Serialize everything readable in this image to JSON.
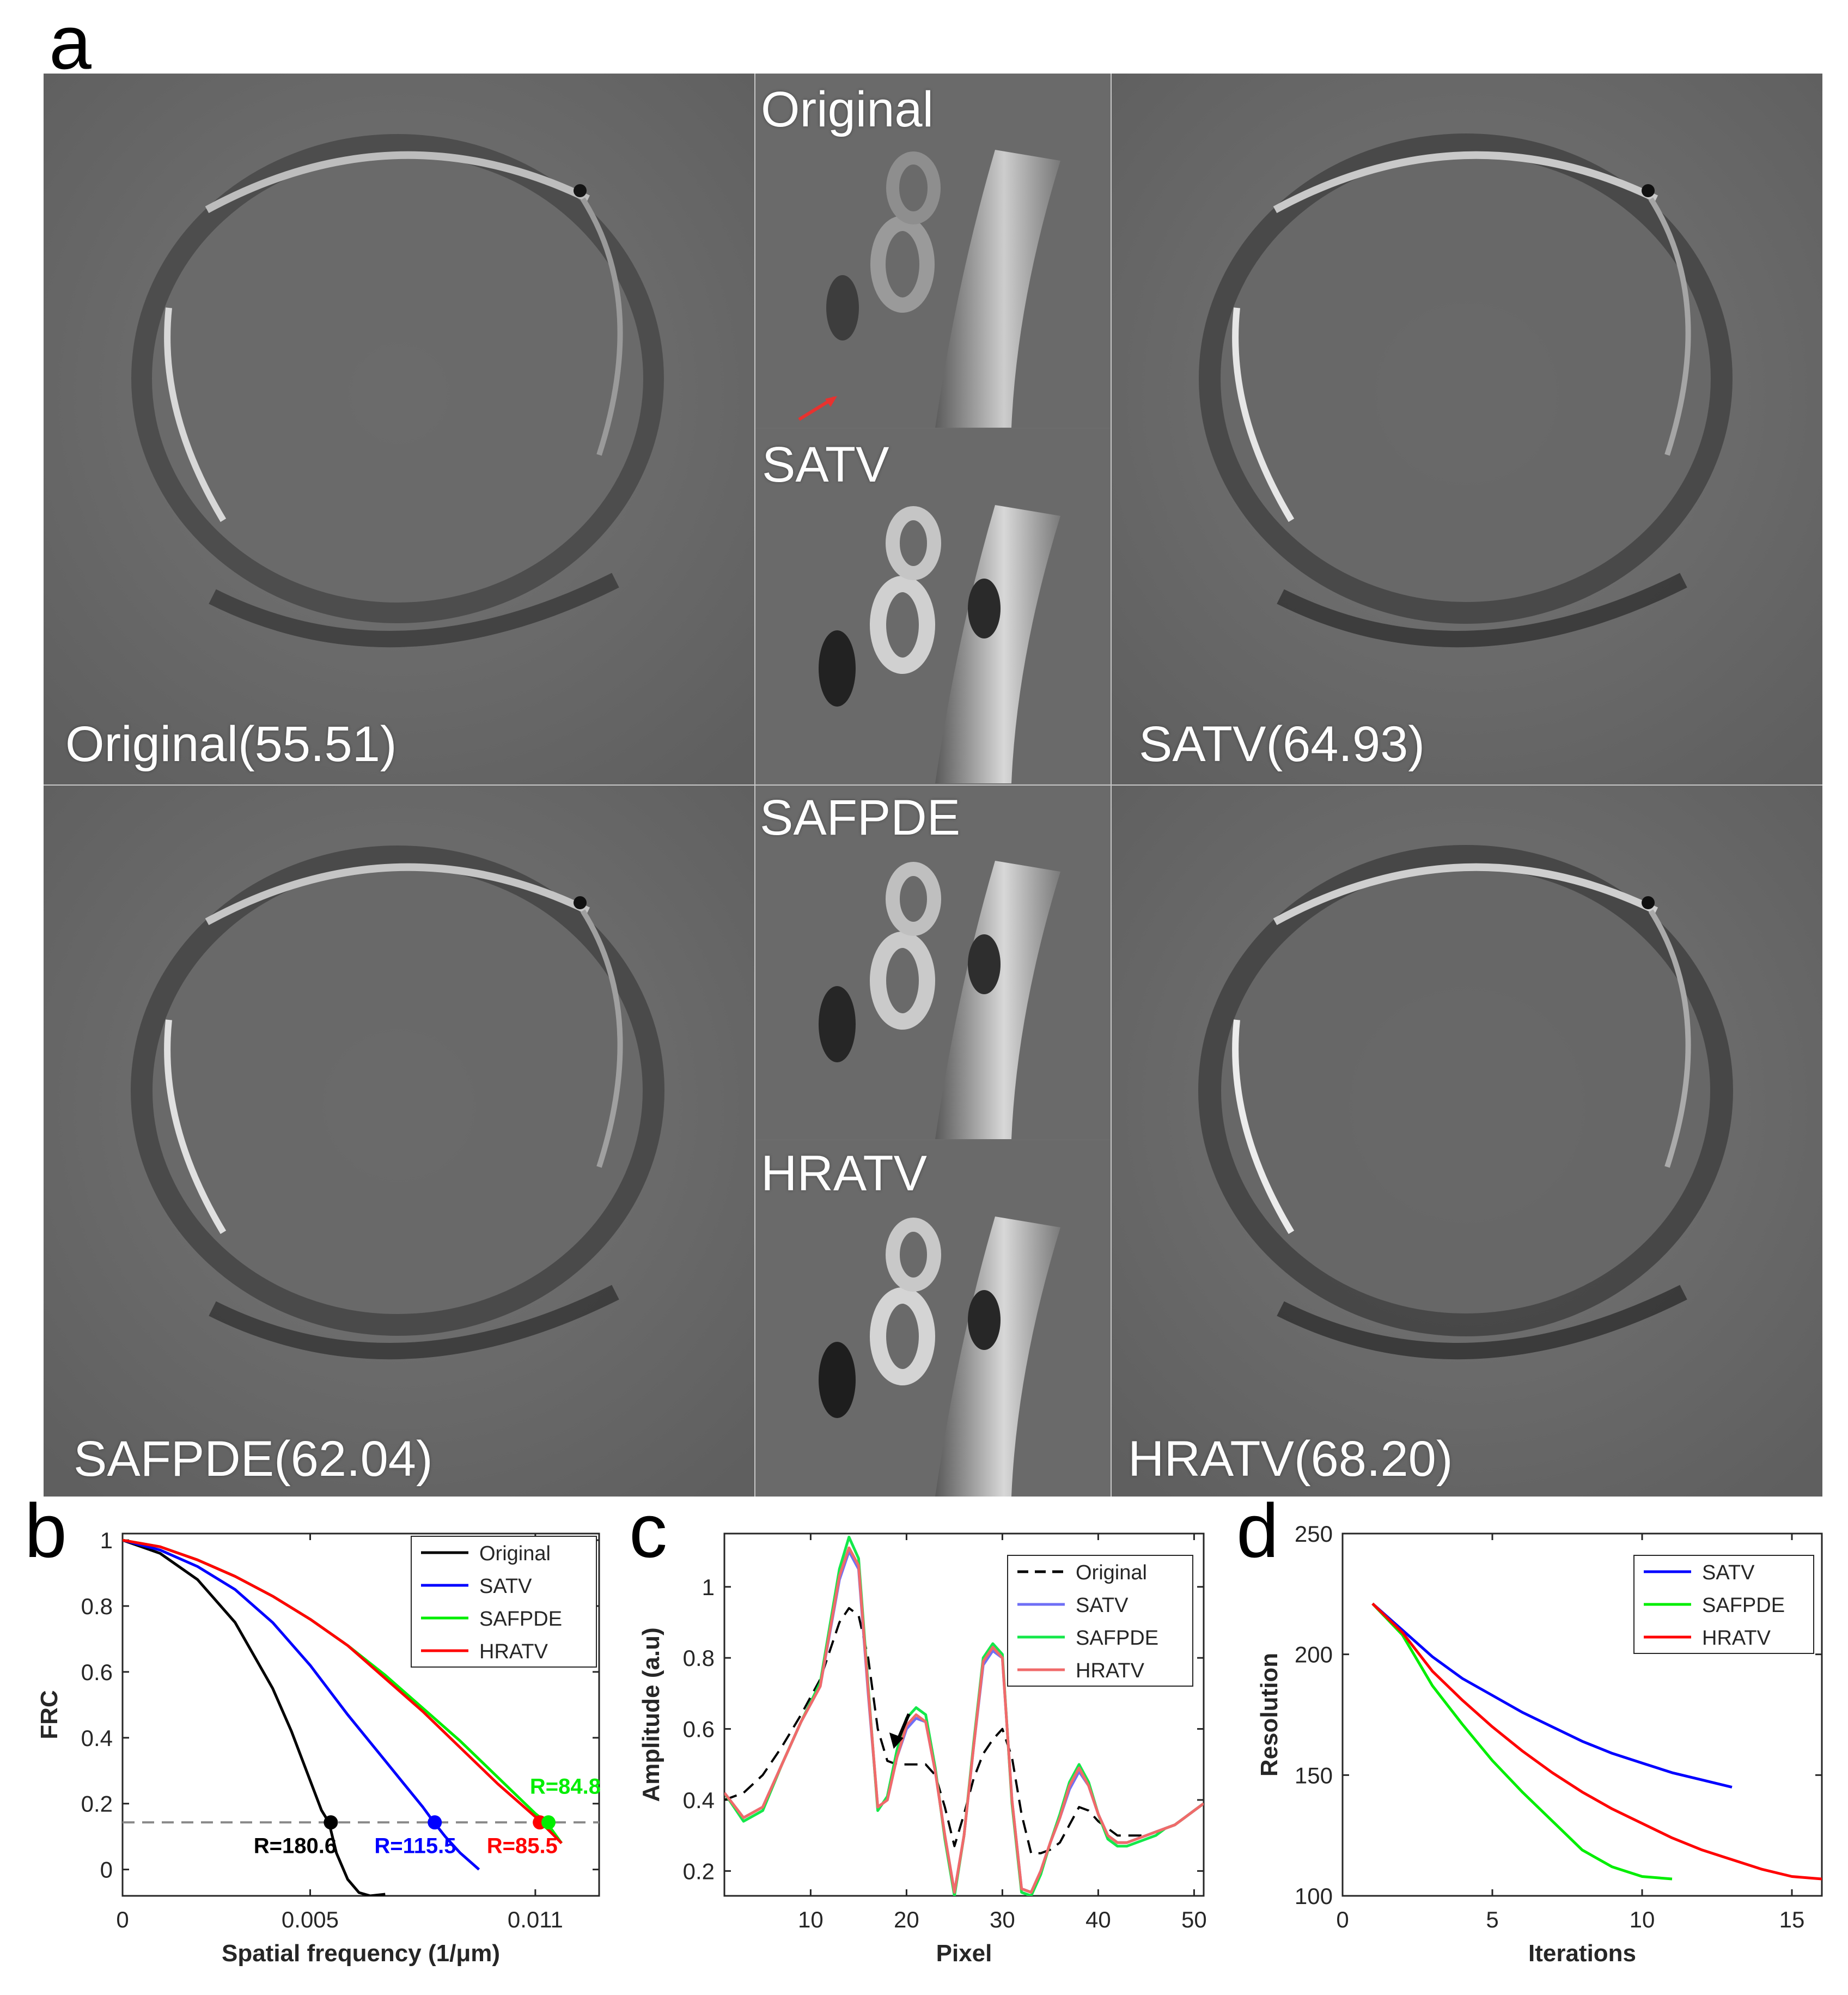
{
  "panel_letters": {
    "a": "a",
    "b": "b",
    "c": "c",
    "d": "d"
  },
  "panel_a": {
    "tiles": {
      "original": "Original(55.51)",
      "satv": "SATV(64.93)",
      "safpde": "SAFPDE(62.04)",
      "hratv": "HRATV(68.20)"
    },
    "zooms": {
      "original": "Original",
      "satv": "SATV",
      "safpde": "SAFPDE",
      "hratv": "HRATV"
    },
    "arrow_colors": {
      "red": "#e8322f",
      "orange": "#f0a22a"
    }
  },
  "chart_data": [
    {
      "id": "b",
      "type": "line",
      "xlabel": "Spatial frequency (1/μm)",
      "ylabel": "FRC",
      "xlim": [
        0,
        0.0127
      ],
      "ylim": [
        -0.08,
        1.02
      ],
      "xticks": [
        0,
        0.005,
        0.011
      ],
      "xtick_labels": [
        "0",
        "0.005",
        "0.011"
      ],
      "yticks": [
        0,
        0.2,
        0.4,
        0.6,
        0.8,
        1
      ],
      "ytick_labels": [
        "0",
        "0.2",
        "0.4",
        "0.6",
        "0.8",
        "1"
      ],
      "threshold": 0.143,
      "legend_position": "top-right",
      "series": [
        {
          "name": "Original",
          "color": "#000000",
          "x": [
            0,
            0.001,
            0.002,
            0.003,
            0.004,
            0.0045,
            0.005,
            0.0053,
            0.0055,
            0.0057,
            0.006,
            0.0063,
            0.0066,
            0.007
          ],
          "y": [
            1,
            0.96,
            0.88,
            0.75,
            0.55,
            0.42,
            0.27,
            0.18,
            0.143,
            0.05,
            -0.03,
            -0.07,
            -0.08,
            -0.075
          ]
        },
        {
          "name": "SATV",
          "color": "#0000ff",
          "x": [
            0,
            0.001,
            0.002,
            0.003,
            0.004,
            0.005,
            0.006,
            0.007,
            0.0075,
            0.008,
            0.0083,
            0.0086,
            0.009,
            0.0095
          ],
          "y": [
            1,
            0.97,
            0.92,
            0.85,
            0.75,
            0.62,
            0.47,
            0.33,
            0.26,
            0.19,
            0.143,
            0.1,
            0.05,
            0
          ]
        },
        {
          "name": "SAFPDE",
          "color": "#00ee00",
          "x": [
            0,
            0.001,
            0.002,
            0.003,
            0.004,
            0.005,
            0.006,
            0.007,
            0.008,
            0.009,
            0.01,
            0.011,
            0.0113,
            0.0117
          ],
          "y": [
            1,
            0.98,
            0.94,
            0.89,
            0.83,
            0.76,
            0.68,
            0.59,
            0.49,
            0.39,
            0.28,
            0.17,
            0.143,
            0.08
          ]
        },
        {
          "name": "HRATV",
          "color": "#ff0000",
          "x": [
            0,
            0.001,
            0.002,
            0.003,
            0.004,
            0.005,
            0.006,
            0.007,
            0.008,
            0.009,
            0.01,
            0.011,
            0.0117
          ],
          "y": [
            1,
            0.98,
            0.94,
            0.89,
            0.83,
            0.76,
            0.68,
            0.58,
            0.48,
            0.37,
            0.26,
            0.16,
            0.08
          ]
        }
      ],
      "markers": [
        {
          "x": 0.00555,
          "y": 0.143,
          "color": "#000000"
        },
        {
          "x": 0.00832,
          "y": 0.143,
          "color": "#0000ff"
        },
        {
          "x": 0.01112,
          "y": 0.143,
          "color": "#ff0000"
        },
        {
          "x": 0.01135,
          "y": 0.143,
          "color": "#00ee00"
        }
      ],
      "annotations": [
        {
          "text": "R=180.6",
          "color": "#000000",
          "x": 0.0046,
          "y": 0.05
        },
        {
          "text": "R=115.5",
          "color": "#0000ff",
          "x": 0.0078,
          "y": 0.05
        },
        {
          "text": "R=85.5",
          "color": "#ff0000",
          "x": 0.01065,
          "y": 0.05
        },
        {
          "text": "R=84.8",
          "color": "#00ee00",
          "x": 0.0118,
          "y": 0.23
        }
      ]
    },
    {
      "id": "c",
      "type": "line",
      "xlabel": "Pixel",
      "ylabel": "Amplitude (a.u)",
      "xlim": [
        1,
        51
      ],
      "ylim": [
        0.13,
        1.15
      ],
      "xticks": [
        10,
        20,
        30,
        40,
        50
      ],
      "xtick_labels": [
        "10",
        "20",
        "30",
        "40",
        "50"
      ],
      "yticks": [
        0.2,
        0.4,
        0.6,
        0.8,
        1
      ],
      "ytick_labels": [
        "0.2",
        "0.4",
        "0.6",
        "0.8",
        "1"
      ],
      "legend_position": "top-right",
      "annotations": [
        {
          "text": "arrow",
          "color": "#000000",
          "x": 19,
          "y": 0.55
        }
      ],
      "series": [
        {
          "name": "Original",
          "color": "#000000",
          "dash": true,
          "x": [
            1,
            3,
            5,
            7,
            9,
            11,
            13,
            14,
            15,
            16,
            17,
            18,
            19,
            20,
            21,
            22,
            23,
            24,
            25,
            26,
            27,
            28,
            29,
            30,
            31,
            32,
            33,
            34,
            35,
            36,
            37,
            38,
            39,
            40,
            41,
            42,
            43,
            44,
            45,
            46,
            47,
            48,
            49,
            50,
            51
          ],
          "y": [
            0.4,
            0.42,
            0.47,
            0.55,
            0.64,
            0.74,
            0.9,
            0.94,
            0.92,
            0.8,
            0.6,
            0.51,
            0.5,
            0.5,
            0.5,
            0.5,
            0.47,
            0.38,
            0.27,
            0.36,
            0.46,
            0.53,
            0.57,
            0.6,
            0.52,
            0.36,
            0.25,
            0.25,
            0.26,
            0.28,
            0.33,
            0.38,
            0.37,
            0.34,
            0.32,
            0.3,
            0.3,
            0.3,
            0.3,
            0.31,
            0.32,
            0.33,
            0.35,
            0.37,
            0.39
          ]
        },
        {
          "name": "SATV",
          "color": "#6f6ff5",
          "x": [
            1,
            3,
            5,
            7,
            9,
            11,
            13,
            14,
            15,
            16,
            17,
            18,
            19,
            20,
            21,
            22,
            23,
            24,
            25,
            26,
            27,
            28,
            29,
            30,
            31,
            32,
            33,
            34,
            35,
            36,
            37,
            38,
            39,
            40,
            41,
            42,
            43,
            44,
            45,
            46,
            47,
            48,
            49,
            50,
            51
          ],
          "y": [
            0.42,
            0.35,
            0.38,
            0.5,
            0.62,
            0.72,
            1.02,
            1.1,
            1.05,
            0.7,
            0.38,
            0.4,
            0.52,
            0.6,
            0.63,
            0.62,
            0.48,
            0.3,
            0.14,
            0.3,
            0.55,
            0.78,
            0.82,
            0.8,
            0.4,
            0.15,
            0.14,
            0.2,
            0.28,
            0.35,
            0.43,
            0.48,
            0.44,
            0.36,
            0.3,
            0.28,
            0.28,
            0.29,
            0.3,
            0.31,
            0.32,
            0.33,
            0.35,
            0.37,
            0.39
          ]
        },
        {
          "name": "SAFPDE",
          "color": "#14e84a",
          "x": [
            1,
            3,
            5,
            7,
            9,
            11,
            13,
            14,
            15,
            16,
            17,
            18,
            19,
            20,
            21,
            22,
            23,
            24,
            25,
            26,
            27,
            28,
            29,
            30,
            31,
            32,
            33,
            34,
            35,
            36,
            37,
            38,
            39,
            40,
            41,
            42,
            43,
            44,
            45,
            46,
            47,
            48,
            49,
            50,
            51
          ],
          "y": [
            0.42,
            0.34,
            0.37,
            0.5,
            0.62,
            0.73,
            1.05,
            1.14,
            1.08,
            0.72,
            0.37,
            0.41,
            0.54,
            0.63,
            0.66,
            0.64,
            0.49,
            0.29,
            0.13,
            0.3,
            0.56,
            0.8,
            0.84,
            0.81,
            0.39,
            0.14,
            0.13,
            0.19,
            0.28,
            0.36,
            0.45,
            0.5,
            0.45,
            0.36,
            0.29,
            0.27,
            0.27,
            0.28,
            0.29,
            0.3,
            0.32,
            0.33,
            0.35,
            0.37,
            0.39
          ]
        },
        {
          "name": "HRATV",
          "color": "#f06a6a",
          "x": [
            1,
            3,
            5,
            7,
            9,
            11,
            13,
            14,
            15,
            16,
            17,
            18,
            19,
            20,
            21,
            22,
            23,
            24,
            25,
            26,
            27,
            28,
            29,
            30,
            31,
            32,
            33,
            34,
            35,
            36,
            37,
            38,
            39,
            40,
            41,
            42,
            43,
            44,
            45,
            46,
            47,
            48,
            49,
            50,
            51
          ],
          "y": [
            0.42,
            0.35,
            0.38,
            0.5,
            0.62,
            0.72,
            1.03,
            1.11,
            1.06,
            0.71,
            0.38,
            0.4,
            0.52,
            0.61,
            0.64,
            0.62,
            0.48,
            0.3,
            0.14,
            0.3,
            0.55,
            0.79,
            0.83,
            0.8,
            0.4,
            0.15,
            0.14,
            0.2,
            0.28,
            0.35,
            0.44,
            0.49,
            0.44,
            0.36,
            0.3,
            0.28,
            0.28,
            0.29,
            0.3,
            0.31,
            0.32,
            0.33,
            0.35,
            0.37,
            0.39
          ]
        }
      ]
    },
    {
      "id": "d",
      "type": "line",
      "xlabel": "Iterations",
      "ylabel": "Resolution",
      "xlim": [
        0,
        16
      ],
      "ylim": [
        100,
        250
      ],
      "xticks": [
        0,
        5,
        10,
        15
      ],
      "xtick_labels": [
        "0",
        "5",
        "10",
        "15"
      ],
      "yticks": [
        100,
        150,
        200,
        250
      ],
      "ytick_labels": [
        "100",
        "150",
        "200",
        "250"
      ],
      "legend_position": "top-right",
      "series": [
        {
          "name": "SATV",
          "color": "#0000ff",
          "x": [
            1,
            2,
            3,
            4,
            5,
            6,
            7,
            8,
            9,
            10,
            11,
            12,
            13
          ],
          "y": [
            221,
            210,
            199,
            190,
            183,
            176,
            170,
            164,
            159,
            155,
            151,
            148,
            145
          ]
        },
        {
          "name": "SAFPDE",
          "color": "#00ee00",
          "x": [
            1,
            2,
            3,
            4,
            5,
            6,
            7,
            8,
            9,
            10,
            11
          ],
          "y": [
            221,
            208,
            187,
            171,
            156,
            143,
            131,
            119,
            112,
            108,
            107
          ]
        },
        {
          "name": "HRATV",
          "color": "#ff0000",
          "x": [
            1,
            2,
            3,
            4,
            5,
            6,
            7,
            8,
            9,
            10,
            11,
            12,
            13,
            14,
            15,
            16
          ],
          "y": [
            221,
            209,
            193,
            181,
            170,
            160,
            151,
            143,
            136,
            130,
            124,
            119,
            115,
            111,
            108,
            107
          ]
        }
      ]
    }
  ]
}
